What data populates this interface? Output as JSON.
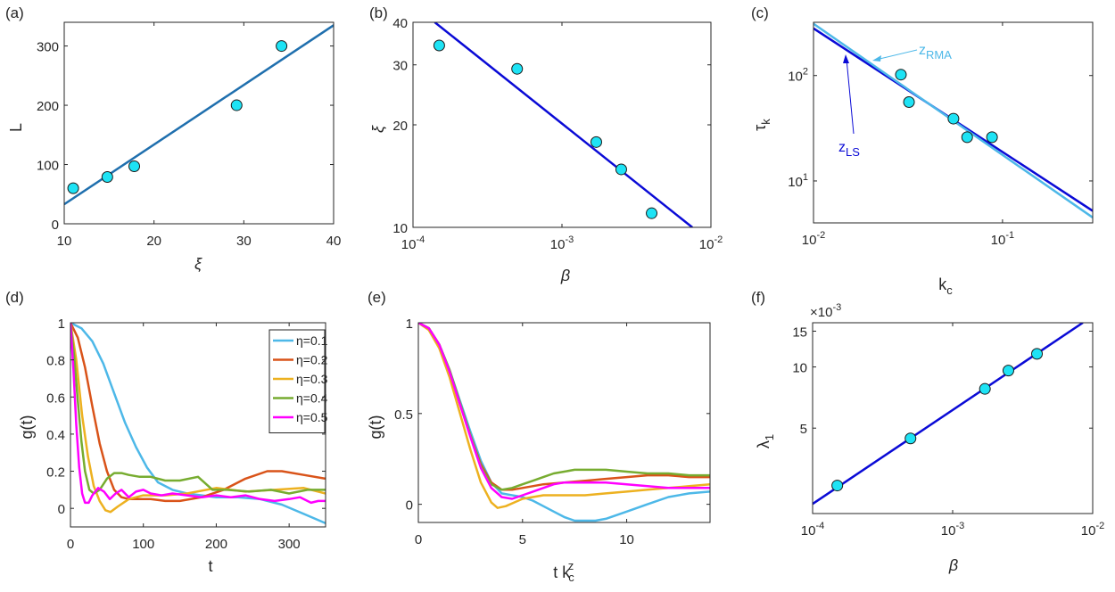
{
  "chart_data": [
    {
      "id": "a",
      "panel_label": "(a)",
      "type": "scatter",
      "xscale": "linear",
      "yscale": "linear",
      "xlim": [
        10,
        40
      ],
      "ylim": [
        0,
        340
      ],
      "xticks": [
        10,
        20,
        30,
        40
      ],
      "xtick_labels": [
        "10",
        "20",
        "30",
        "40"
      ],
      "yticks": [
        0,
        100,
        200,
        300
      ],
      "ytick_labels": [
        "0",
        "100",
        "200",
        "300"
      ],
      "xlabel": "ξ",
      "ylabel": "L",
      "points": [
        [
          11,
          60
        ],
        [
          14.8,
          79
        ],
        [
          17.8,
          97
        ],
        [
          29.2,
          200
        ],
        [
          34.2,
          300
        ]
      ],
      "fit_lines": [
        {
          "x": [
            10,
            40
          ],
          "y": [
            33,
            335
          ],
          "color": "#1f6fae"
        }
      ]
    },
    {
      "id": "b",
      "panel_label": "(b)",
      "type": "scatter",
      "xscale": "log",
      "yscale": "log",
      "xlim": [
        0.0001,
        0.01
      ],
      "ylim": [
        10,
        40
      ],
      "xticks": [
        0.0001,
        0.001,
        0.01
      ],
      "xtick_labels": [
        {
          "base": "10",
          "exp": "-4"
        },
        {
          "base": "10",
          "exp": "-3"
        },
        {
          "base": "10",
          "exp": "-2"
        }
      ],
      "yticks": [
        10,
        20,
        30,
        40
      ],
      "ytick_labels": [
        "10",
        "20",
        "30",
        "40"
      ],
      "xlabel": "β",
      "ylabel": "ξ",
      "points": [
        [
          0.00015,
          34.2
        ],
        [
          0.0005,
          29.2
        ],
        [
          0.0017,
          17.8
        ],
        [
          0.0025,
          14.8
        ],
        [
          0.004,
          11
        ]
      ],
      "fit_lines": [
        {
          "x": [
            0.00014,
            0.0075
          ],
          "y": [
            40,
            10
          ],
          "color": "#0a0ad6"
        }
      ]
    },
    {
      "id": "c",
      "panel_label": "(c)",
      "type": "scatter",
      "xscale": "log",
      "yscale": "log",
      "xlim": [
        0.01,
        0.3
      ],
      "ylim": [
        4,
        320
      ],
      "xticks": [
        0.01,
        0.1
      ],
      "xtick_labels": [
        {
          "base": "10",
          "exp": "-2"
        },
        {
          "base": "10",
          "exp": "-1"
        }
      ],
      "yticks": [
        10,
        100
      ],
      "ytick_labels": [
        {
          "base": "10",
          "exp": "1"
        },
        {
          "base": "10",
          "exp": "2"
        }
      ],
      "xlabel": {
        "base": "k",
        "sub": "c"
      },
      "ylabel": {
        "base": "τ",
        "sub": "k"
      },
      "points": [
        [
          0.029,
          102
        ],
        [
          0.032,
          56
        ],
        [
          0.055,
          39
        ],
        [
          0.065,
          26
        ],
        [
          0.088,
          26
        ]
      ],
      "fit_lines": [
        {
          "name": "LS",
          "x": [
            0.01,
            0.3
          ],
          "y": [
            280,
            5.2
          ],
          "color": "#0a0ad6"
        },
        {
          "name": "RMA",
          "x": [
            0.01,
            0.3
          ],
          "y": [
            310,
            4.5
          ],
          "color": "#4db8e8"
        }
      ],
      "annotations": [
        {
          "base": "z",
          "sub": "RMA",
          "color": "#4db8e8"
        },
        {
          "base": "z",
          "sub": "LS",
          "color": "#0a0ad6"
        }
      ]
    },
    {
      "id": "d",
      "panel_label": "(d)",
      "type": "line",
      "xscale": "linear",
      "yscale": "linear",
      "xlim": [
        0,
        350
      ],
      "ylim": [
        -0.1,
        1
      ],
      "xticks": [
        0,
        100,
        200,
        300
      ],
      "xtick_labels": [
        "0",
        "100",
        "200",
        "300"
      ],
      "yticks": [
        0,
        0.2,
        0.4,
        0.6,
        0.8,
        1
      ],
      "ytick_labels": [
        "0",
        "0.2",
        "0.4",
        "0.6",
        "0.8",
        "1"
      ],
      "xlabel": "t",
      "ylabel": "g(t)",
      "legend": "top-right",
      "series": [
        {
          "name": "η=0.1",
          "color": "#4db8e8",
          "x": [
            0,
            15,
            30,
            45,
            60,
            75,
            90,
            105,
            120,
            140,
            160,
            180,
            200,
            230,
            260,
            290,
            320,
            350
          ],
          "y": [
            1,
            0.97,
            0.9,
            0.78,
            0.62,
            0.46,
            0.33,
            0.22,
            0.14,
            0.1,
            0.08,
            0.07,
            0.06,
            0.06,
            0.05,
            0.02,
            -0.03,
            -0.08
          ]
        },
        {
          "name": "η=0.2",
          "color": "#d95319",
          "x": [
            0,
            10,
            20,
            30,
            40,
            50,
            60,
            70,
            80,
            95,
            110,
            130,
            150,
            180,
            210,
            240,
            270,
            290,
            320,
            350
          ],
          "y": [
            1,
            0.92,
            0.76,
            0.55,
            0.35,
            0.2,
            0.1,
            0.06,
            0.05,
            0.05,
            0.05,
            0.04,
            0.04,
            0.06,
            0.1,
            0.16,
            0.2,
            0.2,
            0.18,
            0.16
          ]
        },
        {
          "name": "η=0.3",
          "color": "#edb120",
          "x": [
            0,
            8,
            16,
            24,
            32,
            40,
            48,
            55,
            65,
            80,
            100,
            130,
            160,
            200,
            240,
            280,
            320,
            350
          ],
          "y": [
            1,
            0.8,
            0.5,
            0.28,
            0.12,
            0.04,
            -0.01,
            -0.02,
            0.01,
            0.05,
            0.07,
            0.07,
            0.08,
            0.11,
            0.09,
            0.1,
            0.11,
            0.08
          ]
        },
        {
          "name": "η=0.4",
          "color": "#77ac30",
          "x": [
            0,
            5,
            10,
            15,
            20,
            26,
            32,
            40,
            50,
            60,
            70,
            80,
            95,
            110,
            130,
            150,
            175,
            195,
            215,
            245,
            275,
            300,
            325,
            350
          ],
          "y": [
            1,
            0.82,
            0.58,
            0.36,
            0.2,
            0.1,
            0.08,
            0.1,
            0.16,
            0.19,
            0.19,
            0.18,
            0.17,
            0.17,
            0.15,
            0.15,
            0.17,
            0.1,
            0.1,
            0.09,
            0.1,
            0.08,
            0.1,
            0.1
          ]
        },
        {
          "name": "η=0.5",
          "color": "#ff00ff",
          "x": [
            0,
            4,
            8,
            12,
            16,
            20,
            25,
            30,
            38,
            46,
            54,
            62,
            70,
            80,
            90,
            100,
            110,
            125,
            140,
            160,
            180,
            200,
            220,
            240,
            260,
            280,
            300,
            315,
            330,
            340,
            350
          ],
          "y": [
            1,
            0.75,
            0.45,
            0.22,
            0.08,
            0.03,
            0.03,
            0.07,
            0.11,
            0.09,
            0.05,
            0.08,
            0.1,
            0.06,
            0.09,
            0.1,
            0.08,
            0.07,
            0.08,
            0.07,
            0.06,
            0.07,
            0.06,
            0.07,
            0.05,
            0.04,
            0.05,
            0.06,
            0.03,
            0.04,
            0.04
          ]
        }
      ]
    },
    {
      "id": "e",
      "panel_label": "(e)",
      "type": "line",
      "xscale": "linear",
      "yscale": "linear",
      "xlim": [
        0,
        14
      ],
      "ylim": [
        -0.1,
        1
      ],
      "xticks": [
        0,
        5,
        10
      ],
      "xtick_labels": [
        "0",
        "5",
        "10"
      ],
      "yticks": [
        0,
        0.5,
        1
      ],
      "ytick_labels": [
        "0",
        "0.5",
        "1"
      ],
      "xlabel": {
        "base": "t k",
        "sub": "c",
        "sup": "z"
      },
      "ylabel": "g(t)",
      "series": [
        {
          "name": "η=0.1",
          "color": "#4db8e8",
          "x": [
            0,
            0.5,
            1,
            1.5,
            2,
            2.5,
            3,
            3.5,
            4,
            4.5,
            5,
            5.5,
            6,
            6.5,
            7,
            7.5,
            8,
            8.5,
            9,
            10,
            11,
            12,
            13,
            14
          ],
          "y": [
            1,
            0.97,
            0.88,
            0.74,
            0.57,
            0.4,
            0.24,
            0.12,
            0.06,
            0.05,
            0.04,
            0.02,
            -0.01,
            -0.04,
            -0.07,
            -0.09,
            -0.09,
            -0.09,
            -0.08,
            -0.04,
            0,
            0.04,
            0.06,
            0.07
          ]
        },
        {
          "name": "η=0.2",
          "color": "#d95319",
          "x": [
            0,
            0.5,
            1,
            1.5,
            2,
            2.5,
            3,
            3.5,
            4,
            4.5,
            5,
            6,
            7,
            8,
            9,
            10,
            11,
            12,
            13,
            14
          ],
          "y": [
            1,
            0.97,
            0.88,
            0.73,
            0.55,
            0.38,
            0.22,
            0.12,
            0.08,
            0.08,
            0.09,
            0.11,
            0.12,
            0.13,
            0.14,
            0.15,
            0.16,
            0.16,
            0.15,
            0.15
          ]
        },
        {
          "name": "η=0.3",
          "color": "#edb120",
          "x": [
            0,
            0.5,
            1,
            1.5,
            2,
            2.5,
            3,
            3.5,
            3.8,
            4.2,
            4.6,
            5,
            5.5,
            6,
            7,
            8,
            9,
            10,
            11,
            12,
            13,
            14
          ],
          "y": [
            1,
            0.96,
            0.86,
            0.7,
            0.5,
            0.3,
            0.12,
            0.01,
            -0.02,
            -0.01,
            0.01,
            0.03,
            0.04,
            0.05,
            0.05,
            0.05,
            0.06,
            0.07,
            0.08,
            0.09,
            0.1,
            0.11
          ]
        },
        {
          "name": "η=0.4",
          "color": "#77ac30",
          "x": [
            0,
            0.5,
            1,
            1.5,
            2,
            2.5,
            3,
            3.5,
            4,
            4.5,
            5,
            5.5,
            6,
            6.5,
            7,
            7.5,
            8,
            9,
            10,
            11,
            12,
            13,
            14
          ],
          "y": [
            1,
            0.97,
            0.88,
            0.74,
            0.56,
            0.38,
            0.21,
            0.11,
            0.08,
            0.09,
            0.11,
            0.13,
            0.15,
            0.17,
            0.18,
            0.19,
            0.19,
            0.19,
            0.18,
            0.17,
            0.17,
            0.16,
            0.16
          ]
        },
        {
          "name": "η=0.5",
          "color": "#ff00ff",
          "x": [
            0,
            0.5,
            1,
            1.5,
            2,
            2.5,
            3,
            3.5,
            4,
            4.5,
            5,
            5.5,
            6,
            6.5,
            7,
            8,
            9,
            10,
            11,
            12,
            13,
            14
          ],
          "y": [
            1,
            0.97,
            0.88,
            0.73,
            0.55,
            0.37,
            0.2,
            0.09,
            0.04,
            0.03,
            0.05,
            0.07,
            0.09,
            0.11,
            0.12,
            0.12,
            0.12,
            0.11,
            0.1,
            0.09,
            0.09,
            0.09
          ]
        }
      ]
    },
    {
      "id": "f",
      "panel_label": "(f)",
      "type": "scatter",
      "xscale": "log",
      "yscale": "log",
      "xlim": [
        0.0001,
        0.01
      ],
      "ylim": [
        0.0019,
        0.0165
      ],
      "xticks": [
        0.0001,
        0.001,
        0.01
      ],
      "xtick_labels": [
        {
          "base": "10",
          "exp": "-4"
        },
        {
          "base": "10",
          "exp": "-3"
        },
        {
          "base": "10",
          "exp": "-2"
        }
      ],
      "yticks": [
        0.005,
        0.01,
        0.015
      ],
      "ytick_labels": [
        "5",
        "10",
        "15"
      ],
      "y_multiplier": {
        "base": "×10",
        "exp": "-3"
      },
      "xlabel": "β",
      "ylabel": {
        "base": "λ",
        "sub": "1"
      },
      "points": [
        [
          0.00015,
          0.00261
        ],
        [
          0.0005,
          0.00445
        ],
        [
          0.0017,
          0.0078
        ],
        [
          0.0025,
          0.0096
        ],
        [
          0.004,
          0.0116
        ]
      ],
      "fit_lines": [
        {
          "x": [
            0.0001,
            0.0085
          ],
          "y": [
            0.00212,
            0.0165
          ],
          "color": "#0a0ad6"
        }
      ]
    }
  ]
}
